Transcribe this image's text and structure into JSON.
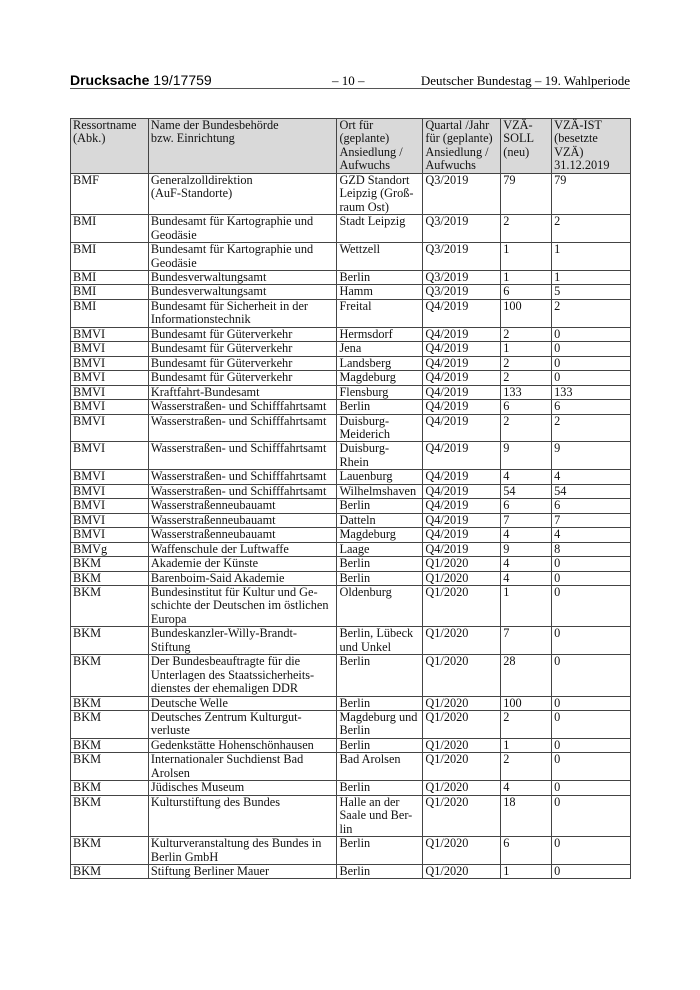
{
  "header": {
    "doc_label": "Drucksache",
    "doc_number": "19/17759",
    "page": "– 10 –",
    "publisher": "Deutscher Bundestag – 19. Wahlperiode"
  },
  "table": {
    "columns": [
      "Ressortname\n(Abk.)",
      "Name der Bundesbehörde\nbzw. Einrichtung",
      "Ort für\n(geplante)\nAnsiedlung /\nAufwuchs",
      "Quartal /Jahr\nfür (geplante)\nAnsiedlung /\nAufwuchs",
      "VZÄ-\nSOLL\n(neu)",
      "VZÄ-IST\n(besetzte\nVZÄ)\n31.12.2019"
    ],
    "rows": [
      [
        "BMF",
        "Generalzolldirektion\n(AuF-Standorte)",
        "GZD Standort\nLeipzig (Groß-\nraum Ost)",
        "Q3/2019",
        "79",
        "79"
      ],
      [
        "BMI",
        "Bundesamt für Kartographie und\nGeodäsie",
        "Stadt Leipzig",
        "Q3/2019",
        "2",
        "2"
      ],
      [
        "BMI",
        "Bundesamt für Kartographie und\nGeodäsie",
        "Wettzell",
        "Q3/2019",
        "1",
        "1"
      ],
      [
        "BMI",
        "Bundesverwaltungsamt",
        "Berlin",
        "Q3/2019",
        "1",
        "1"
      ],
      [
        "BMI",
        "Bundesverwaltungsamt",
        "Hamm",
        "Q3/2019",
        "6",
        "5"
      ],
      [
        "BMI",
        "Bundesamt für Sicherheit in der\nInformationstechnik",
        "Freital",
        "Q4/2019",
        "100",
        "2"
      ],
      [
        "BMVI",
        "Bundesamt für Güterverkehr",
        "Hermsdorf",
        "Q4/2019",
        "2",
        "0"
      ],
      [
        "BMVI",
        "Bundesamt für Güterverkehr",
        "Jena",
        "Q4/2019",
        "1",
        "0"
      ],
      [
        "BMVI",
        "Bundesamt für Güterverkehr",
        "Landsberg",
        "Q4/2019",
        "2",
        "0"
      ],
      [
        "BMVI",
        "Bundesamt für Güterverkehr",
        "Magdeburg",
        "Q4/2019",
        "2",
        "0"
      ],
      [
        "BMVI",
        "Kraftfahrt-Bundesamt",
        "Flensburg",
        "Q4/2019",
        "133",
        "133"
      ],
      [
        "BMVI",
        "Wasserstraßen- und Schifffahrtsamt",
        "Berlin",
        "Q4/2019",
        "6",
        "6"
      ],
      [
        "BMVI",
        "Wasserstraßen- und Schifffahrtsamt",
        "Duisburg-\nMeiderich",
        "Q4/2019",
        "2",
        "2"
      ],
      [
        "BMVI",
        "Wasserstraßen- und Schifffahrtsamt",
        "Duisburg-\nRhein",
        "Q4/2019",
        "9",
        "9"
      ],
      [
        "BMVI",
        "Wasserstraßen- und Schifffahrtsamt",
        "Lauenburg",
        "Q4/2019",
        "4",
        "4"
      ],
      [
        "BMVI",
        "Wasserstraßen- und Schifffahrtsamt",
        "Wilhelmshaven",
        "Q4/2019",
        "54",
        "54"
      ],
      [
        "BMVI",
        "Wasserstraßenneubauamt",
        "Berlin",
        "Q4/2019",
        "6",
        "6"
      ],
      [
        "BMVI",
        "Wasserstraßenneubauamt",
        "Datteln",
        "Q4/2019",
        "7",
        "7"
      ],
      [
        "BMVI",
        "Wasserstraßenneubauamt",
        "Magdeburg",
        "Q4/2019",
        "4",
        "4"
      ],
      [
        "BMVg",
        "Waffenschule der Luftwaffe",
        "Laage",
        "Q4/2019",
        "9",
        "8"
      ],
      [
        "BKM",
        "Akademie der Künste",
        "Berlin",
        "Q1/2020",
        "4",
        "0"
      ],
      [
        "BKM",
        "Barenboim-Said Akademie",
        "Berlin",
        "Q1/2020",
        "4",
        "0"
      ],
      [
        "BKM",
        "Bundesinstitut für Kultur und Ge-\nschichte der Deutschen im östlichen\nEuropa",
        "Oldenburg",
        "Q1/2020",
        "1",
        "0"
      ],
      [
        "BKM",
        "Bundeskanzler-Willy-Brandt-\nStiftung",
        "Berlin, Lübeck\nund Unkel",
        "Q1/2020",
        "7",
        "0"
      ],
      [
        "BKM",
        "Der Bundesbeauftragte für die\nUnterlagen des Staatssicherheits-\ndienstes der ehemaligen DDR",
        "Berlin",
        "Q1/2020",
        "28",
        "0"
      ],
      [
        "BKM",
        "Deutsche Welle",
        "Berlin",
        "Q1/2020",
        "100",
        "0"
      ],
      [
        "BKM",
        "Deutsches Zentrum Kulturgut-\nverluste",
        "Magdeburg und\nBerlin",
        "Q1/2020",
        "2",
        "0"
      ],
      [
        "BKM",
        "Gedenkstätte Hohenschönhausen",
        "Berlin",
        "Q1/2020",
        "1",
        "0"
      ],
      [
        "BKM",
        "Internationaler Suchdienst Bad\nArolsen",
        "Bad Arolsen",
        "Q1/2020",
        "2",
        "0"
      ],
      [
        "BKM",
        "Jüdisches Museum",
        "Berlin",
        "Q1/2020",
        "4",
        "0"
      ],
      [
        "BKM",
        "Kulturstiftung des Bundes",
        "Halle an der\nSaale und Ber-\nlin",
        "Q1/2020",
        "18",
        "0"
      ],
      [
        "BKM",
        "Kulturveranstaltung des Bundes in\nBerlin GmbH",
        "Berlin",
        "Q1/2020",
        "6",
        "0"
      ],
      [
        "BKM",
        "Stiftung Berliner Mauer",
        "Berlin",
        "Q1/2020",
        "1",
        "0"
      ]
    ]
  }
}
